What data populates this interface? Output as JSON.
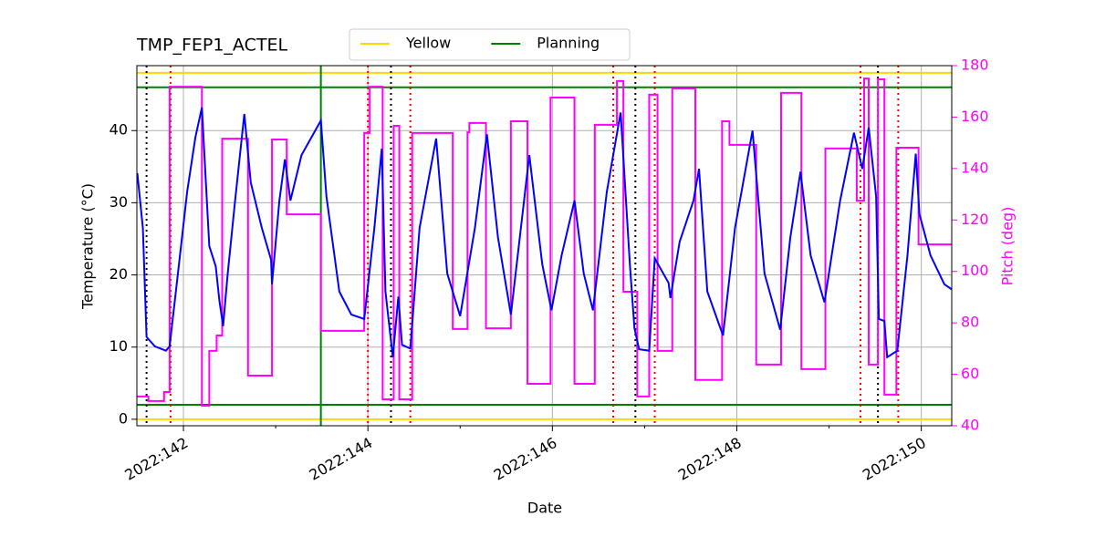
{
  "chart_data": {
    "type": "line",
    "title": "TMP_FEP1_ACTEL",
    "xlabel": "Date",
    "ylabel": "Temperature (°C)",
    "y2label": "Pitch (deg)",
    "xlim": [
      141.495,
      150.33
    ],
    "ylim": [
      -0.9,
      49
    ],
    "y2lim": [
      40,
      180
    ],
    "xticks": [
      {
        "value": 142,
        "label": "2022:142"
      },
      {
        "value": 144,
        "label": "2022:144"
      },
      {
        "value": 146,
        "label": "2022:146"
      },
      {
        "value": 148,
        "label": "2022:148"
      },
      {
        "value": 150,
        "label": "2022:150"
      }
    ],
    "xminorticks": [
      143,
      145,
      147,
      149
    ],
    "yticks": [
      0,
      10,
      20,
      30,
      40
    ],
    "y2ticks": [
      40,
      60,
      80,
      100,
      120,
      140,
      160,
      180
    ],
    "y2color": "#ff00ff",
    "grid": true,
    "legend": "upper center",
    "limits": [
      {
        "name": "Yellow",
        "color": "#ffd700",
        "values": [
          0,
          48
        ]
      },
      {
        "name": "Planning",
        "color": "#008000",
        "values": [
          2,
          46
        ]
      }
    ],
    "vlines": [
      {
        "color": "#008000",
        "style": "solid",
        "x": [
          143.49
        ]
      },
      {
        "color": "#000000",
        "style": "dotted",
        "x": [
          141.6,
          144.25,
          146.9,
          149.53
        ]
      },
      {
        "color": "#ff0000",
        "style": "dotted",
        "x": [
          141.86,
          144.0,
          144.46,
          146.66,
          147.11,
          149.34,
          149.75
        ]
      }
    ],
    "series": [
      {
        "color": "#0000ff",
        "axis": "y",
        "x": [
          141.5,
          141.56,
          141.6,
          141.69,
          141.81,
          141.85,
          141.94,
          142.04,
          142.13,
          142.2,
          142.28,
          142.35,
          142.39,
          142.43,
          142.48,
          142.56,
          142.66,
          142.73,
          142.85,
          142.95,
          142.96,
          143.04,
          143.1,
          143.16,
          143.28,
          143.49,
          143.55,
          143.69,
          143.82,
          143.96,
          144.07,
          144.15,
          144.19,
          144.27,
          144.33,
          144.37,
          144.46,
          144.56,
          144.74,
          144.86,
          145.0,
          145.16,
          145.29,
          145.41,
          145.55,
          145.75,
          145.89,
          145.99,
          146.1,
          146.24,
          146.34,
          146.44,
          146.59,
          146.74,
          146.84,
          146.89,
          146.94,
          147.05,
          147.11,
          147.26,
          147.28,
          147.38,
          147.53,
          147.59,
          147.68,
          147.85,
          147.98,
          148.17,
          148.3,
          148.47,
          148.58,
          148.69,
          148.8,
          148.95,
          149.12,
          149.27,
          149.36,
          149.43,
          149.51,
          149.54,
          149.6,
          149.63,
          149.74,
          149.85,
          149.94,
          149.98,
          150.1,
          150.25,
          150.33
        ],
        "values": [
          34.1,
          26.5,
          11.4,
          10.1,
          9.5,
          10.1,
          20.2,
          31.5,
          39.1,
          43.2,
          24.0,
          21.2,
          16.4,
          12.9,
          20.2,
          30.3,
          42.3,
          32.8,
          26.5,
          22.1,
          18.7,
          30.3,
          36.0,
          30.3,
          36.6,
          41.4,
          30.9,
          17.7,
          14.5,
          13.9,
          26.5,
          37.5,
          17.7,
          8.6,
          17.0,
          10.3,
          9.8,
          26.5,
          38.9,
          20.2,
          14.3,
          26.5,
          39.5,
          25.2,
          14.5,
          36.6,
          21.5,
          15.1,
          22.7,
          30.3,
          20.2,
          15.1,
          31.5,
          42.5,
          21.5,
          12.6,
          9.7,
          9.5,
          22.3,
          18.9,
          16.8,
          24.6,
          30.3,
          34.7,
          17.7,
          11.6,
          26.5,
          40.0,
          20.2,
          12.4,
          25.2,
          34.3,
          22.7,
          16.2,
          30.3,
          39.7,
          34.7,
          40.4,
          30.9,
          13.9,
          13.6,
          8.6,
          9.5,
          22.7,
          36.8,
          28.4,
          22.7,
          18.7,
          18.0
        ]
      },
      {
        "color": "#ff00ff",
        "axis": "y2",
        "drawstyle": "steps-post",
        "x": [
          141.5,
          141.62,
          141.79,
          141.85,
          142.2,
          142.28,
          142.36,
          142.42,
          142.7,
          142.96,
          143.12,
          143.49,
          143.96,
          144.02,
          144.16,
          144.28,
          144.34,
          144.48,
          144.92,
          145.08,
          145.1,
          145.28,
          145.55,
          145.73,
          145.98,
          146.24,
          146.46,
          146.7,
          146.77,
          146.92,
          147.05,
          147.14,
          147.3,
          147.55,
          147.84,
          147.92,
          148.21,
          148.48,
          148.7,
          148.96,
          149.3,
          149.38,
          149.43,
          149.53,
          149.6,
          149.73,
          149.97,
          150.33
        ],
        "values": [
          51.4,
          49.6,
          53.1,
          171.8,
          47.8,
          69.1,
          75.1,
          151.6,
          59.5,
          151.3,
          122.2,
          76.9,
          153.8,
          171.8,
          50.3,
          156.6,
          50.3,
          153.8,
          77.6,
          154.1,
          157.7,
          77.9,
          158.4,
          56.3,
          167.6,
          56.3,
          157.0,
          174.0,
          92.1,
          51.4,
          168.7,
          69.1,
          171.1,
          57.8,
          158.4,
          149.2,
          63.8,
          169.4,
          62.0,
          147.8,
          127.5,
          175.0,
          63.8,
          174.7,
          52.1,
          148.1,
          110.5,
          110.5
        ]
      }
    ]
  }
}
